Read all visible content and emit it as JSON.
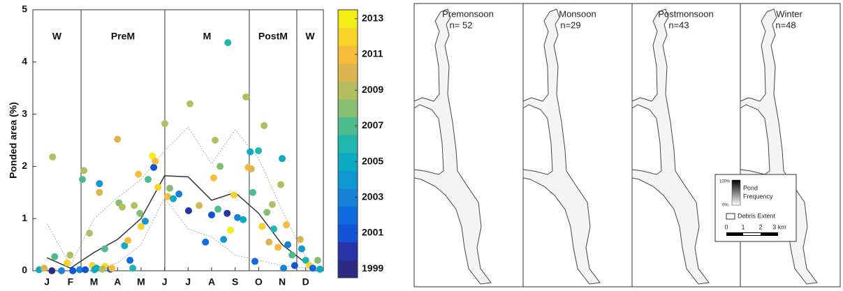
{
  "chart_data": {
    "type": "scatter",
    "ylabel": "Ponded area (%)",
    "xlim": [
      0.4,
      12.75
    ],
    "xticks": [
      {
        "value": 1,
        "label": "J"
      },
      {
        "value": 2,
        "label": "F"
      },
      {
        "value": 3,
        "label": "M"
      },
      {
        "value": 4,
        "label": "A"
      },
      {
        "value": 5,
        "label": "M"
      },
      {
        "value": 6,
        "label": "J"
      },
      {
        "value": 7,
        "label": "J"
      },
      {
        "value": 8,
        "label": "A"
      },
      {
        "value": 9,
        "label": "S"
      },
      {
        "value": 10,
        "label": "O"
      },
      {
        "value": 11,
        "label": "N"
      },
      {
        "value": 12,
        "label": "D"
      }
    ],
    "ylim": [
      0,
      5
    ],
    "yticks": [
      0,
      1,
      2,
      3,
      4,
      5
    ],
    "seasons": {
      "labels": [
        "W",
        "PreM",
        "M",
        "PostM",
        "W"
      ],
      "bounds": [
        2.45,
        6.01,
        9.6,
        11.62
      ]
    },
    "x": [
      1.24,
      1.33,
      0.67,
      0.88,
      1.21,
      1.62,
      1.98,
      1.86,
      2.1,
      2.57,
      2.51,
      2.81,
      2.93,
      3.11,
      2.39,
      3.23,
      3.23,
      3.46,
      3.46,
      3.7,
      4.0,
      4.06,
      4.2,
      4.3,
      4.44,
      4.53,
      4.65,
      4.71,
      4.89,
      4.95,
      5.0,
      5.18,
      5.3,
      5.48,
      5.54,
      5.6,
      5.72,
      6.01,
      6.13,
      6.22,
      6.37,
      6.61,
      7.02,
      7.08,
      7.47,
      7.74,
      8.0,
      8.09,
      8.15,
      8.27,
      8.36,
      8.51,
      8.66,
      8.69,
      8.8,
      8.95,
      9.1,
      9.34,
      9.46,
      9.55,
      9.64,
      9.69,
      9.75,
      9.84,
      9.99,
      10.14,
      10.23,
      10.35,
      10.44,
      10.58,
      10.64,
      10.82,
      10.94,
      11.0,
      11.06,
      11.18,
      11.24,
      11.42,
      11.53,
      11.77,
      11.83,
      12.0,
      12.16,
      12.3,
      12.51,
      12.6,
      2.63,
      3.02,
      3.35,
      3.76
    ],
    "y": [
      2.18,
      0.27,
      0.02,
      0.05,
      0.0,
      0.0,
      0.3,
      0.15,
      0.0,
      1.92,
      1.75,
      0.72,
      0.1,
      0.05,
      0.02,
      1.67,
      1.5,
      0.42,
      0.08,
      0.03,
      2.52,
      1.3,
      1.22,
      0.48,
      0.58,
      0.2,
      0.05,
      1.25,
      1.85,
      1.1,
      0.85,
      0.95,
      1.75,
      2.2,
      1.98,
      2.1,
      1.6,
      2.82,
      1.42,
      1.58,
      1.38,
      1.47,
      1.15,
      3.2,
      1.25,
      0.55,
      1.07,
      1.78,
      2.5,
      1.18,
      2.0,
      0.6,
      1.1,
      4.37,
      0.78,
      1.45,
      1.02,
      0.98,
      3.33,
      1.98,
      2.28,
      1.95,
      1.5,
      0.18,
      2.3,
      0.85,
      2.78,
      1.12,
      0.55,
      1.27,
      0.8,
      0.45,
      1.65,
      2.15,
      0.05,
      0.88,
      0.5,
      0.3,
      0.1,
      0.6,
      0.42,
      0.2,
      0.1,
      0.05,
      0.2,
      0.03,
      0.02,
      0.02,
      0.03,
      0.05
    ],
    "year": [
      2009,
      2007,
      2005,
      2010,
      1999,
      2003,
      2009,
      2012,
      2001,
      2009,
      2007,
      2009,
      2012,
      2005,
      2003,
      2004,
      2010,
      2007,
      2012,
      2001,
      2010,
      2008,
      2009,
      2005,
      2011,
      2002,
      2006,
      2009,
      2011,
      2008,
      2012,
      2004,
      2007,
      2013,
      2001,
      2011,
      2012,
      2009,
      2011,
      2008,
      2005,
      2003,
      2000,
      2009,
      2010,
      2002,
      2001,
      2011,
      2009,
      2007,
      2008,
      2004,
      2000,
      2006,
      2013,
      2012,
      2003,
      2005,
      2009,
      2011,
      2005,
      2010,
      2007,
      2002,
      2006,
      2012,
      2009,
      2008,
      2010,
      2009,
      2006,
      2011,
      2009,
      2005,
      2003,
      2011,
      2003,
      2007,
      2001,
      2010,
      2004,
      2006,
      2012,
      2002,
      2008,
      2005,
      2001,
      2005,
      2009,
      2011
    ],
    "lines": {
      "x": [
        1,
        2,
        3,
        4,
        5,
        6,
        7,
        8,
        9,
        10,
        11,
        12
      ],
      "series": [
        {
          "color": "#aaaaaa",
          "style": "dotted",
          "values": [
            0.9,
            0.1,
            1.0,
            1.4,
            1.75,
            2.3,
            2.75,
            2.05,
            2.7,
            2.15,
            1.15,
            0.25
          ]
        },
        {
          "color": "#aaaaaa",
          "style": "dotted",
          "values": [
            0.05,
            0.0,
            0.0,
            0.15,
            0.5,
            1.4,
            0.8,
            0.65,
            0.3,
            0.2,
            0.1,
            0.05
          ]
        },
        {
          "color": "#333333",
          "style": "solid",
          "values": [
            0.25,
            0.05,
            0.35,
            0.6,
            1.0,
            1.82,
            1.8,
            1.35,
            1.5,
            1.1,
            0.5,
            0.15
          ]
        }
      ]
    },
    "colorbar": {
      "years": [
        1999,
        2000,
        2001,
        2002,
        2003,
        2004,
        2005,
        2006,
        2007,
        2008,
        2009,
        2010,
        2011,
        2012,
        2013
      ],
      "colors": [
        "#2c2a85",
        "#2634a8",
        "#1353d6",
        "#106ae0",
        "#1582d8",
        "#0f97d0",
        "#0aaac4",
        "#20b5ae",
        "#4cbc8f",
        "#86bf72",
        "#b5be5f",
        "#dcb550",
        "#f9bb3c",
        "#f8d42a",
        "#f3ee16"
      ],
      "ticks": [
        1999,
        2001,
        2003,
        2005,
        2007,
        2009,
        2011,
        2013
      ]
    }
  },
  "maps": {
    "panels": [
      {
        "title": "Premonsoon",
        "n": "n= 52"
      },
      {
        "title": "Monsoon",
        "n": "n=29"
      },
      {
        "title": "Postmonsoon",
        "n": "n=43"
      },
      {
        "title": "Winter",
        "n": "n=48"
      }
    ],
    "legend": {
      "top": "100%",
      "bottom": "0%",
      "pond": "Pond",
      "frequency": "Frequency",
      "debris": "Debris Extent",
      "scale": [
        "0",
        "1",
        "2",
        "3 km"
      ]
    }
  }
}
